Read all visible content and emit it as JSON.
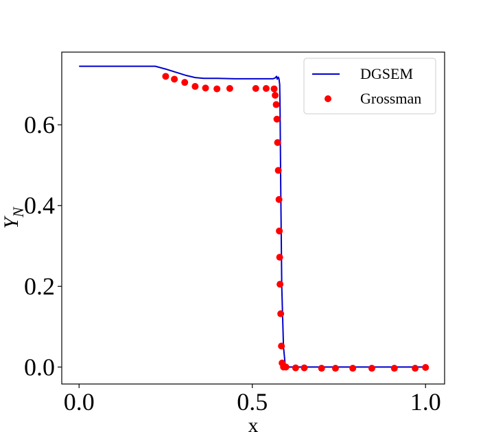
{
  "chart_data": {
    "type": "line",
    "title": "",
    "xlabel": "x",
    "ylabel": "Y_N",
    "xlim": [
      -0.05,
      1.055
    ],
    "ylim": [
      -0.042,
      0.78
    ],
    "xticks": [
      0.0,
      0.5,
      1.0
    ],
    "xtick_labels": [
      "0.0",
      "0.5",
      "1.0"
    ],
    "yticks": [
      0.0,
      0.2,
      0.4,
      0.6
    ],
    "ytick_labels": [
      "0.0",
      "0.2",
      "0.4",
      "0.6"
    ],
    "grid": false,
    "legend_position": "top-right",
    "colors": {
      "line": "#0000cc",
      "scatter": "#ff0000"
    },
    "series": [
      {
        "name": "DGSEM",
        "kind": "line",
        "x": [
          0.0,
          0.1,
          0.2,
          0.22,
          0.25,
          0.28,
          0.31,
          0.335,
          0.36,
          0.4,
          0.45,
          0.5,
          0.55,
          0.56,
          0.566,
          0.57,
          0.572,
          0.575,
          0.577,
          0.579,
          0.58,
          0.582,
          0.585,
          0.59,
          0.595,
          0.6,
          0.65,
          0.7,
          0.8,
          0.9,
          1.0
        ],
        "y": [
          0.745,
          0.745,
          0.745,
          0.745,
          0.738,
          0.73,
          0.722,
          0.717,
          0.715,
          0.715,
          0.714,
          0.714,
          0.714,
          0.714,
          0.716,
          0.72,
          0.713,
          0.718,
          0.714,
          0.7,
          0.65,
          0.45,
          0.2,
          0.05,
          0.005,
          0.0,
          0.0,
          0.0,
          0.0,
          0.0,
          0.0
        ]
      },
      {
        "name": "Grossman",
        "kind": "scatter",
        "x": [
          0.25,
          0.275,
          0.305,
          0.335,
          0.365,
          0.398,
          0.435,
          0.51,
          0.54,
          0.563,
          0.566,
          0.569,
          0.571,
          0.573,
          0.575,
          0.577,
          0.578,
          0.579,
          0.58,
          0.582,
          0.584,
          0.586,
          0.59,
          0.597,
          0.625,
          0.65,
          0.7,
          0.74,
          0.79,
          0.845,
          0.91,
          0.97,
          1.0
        ],
        "y": [
          0.72,
          0.713,
          0.705,
          0.695,
          0.691,
          0.689,
          0.69,
          0.69,
          0.69,
          0.689,
          0.673,
          0.65,
          0.614,
          0.556,
          0.487,
          0.415,
          0.337,
          0.272,
          0.205,
          0.132,
          0.052,
          0.01,
          0.0,
          0.0,
          -0.002,
          -0.002,
          -0.003,
          -0.003,
          -0.003,
          -0.003,
          -0.003,
          -0.003,
          -0.001
        ]
      }
    ]
  }
}
